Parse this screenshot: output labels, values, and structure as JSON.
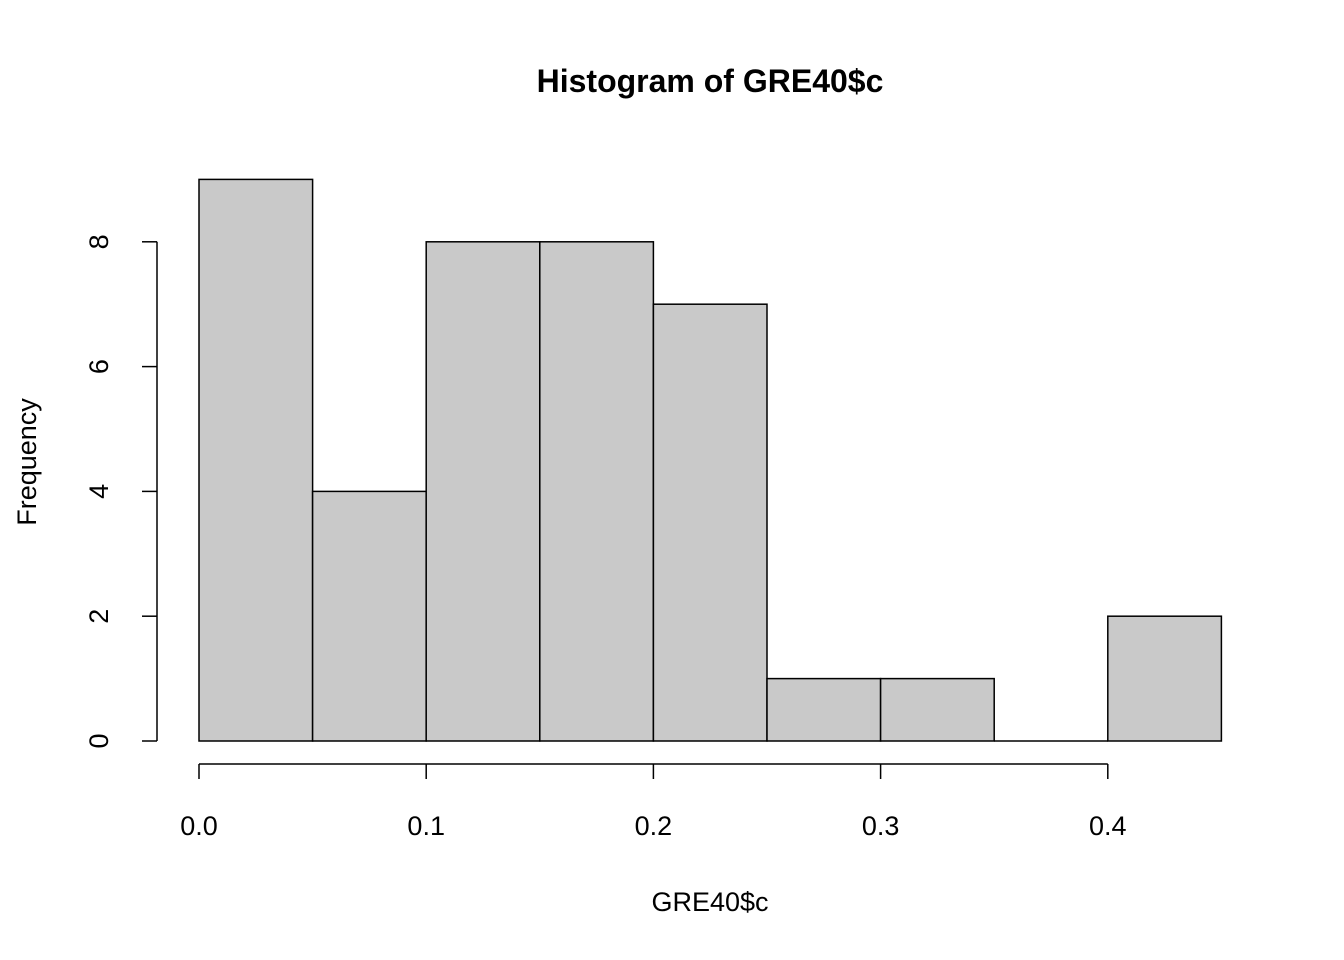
{
  "chart_data": {
    "type": "bar",
    "title": "Histogram of GRE40$c",
    "xlabel": "GRE40$c",
    "ylabel": "Frequency",
    "bin_edges": [
      0.0,
      0.05,
      0.1,
      0.15,
      0.2,
      0.25,
      0.3,
      0.35,
      0.4,
      0.45
    ],
    "values": [
      9,
      4,
      8,
      8,
      7,
      1,
      1,
      0,
      2
    ],
    "xlim": [
      0.0,
      0.45
    ],
    "ylim": [
      0,
      9
    ],
    "x_ticks": [
      0.0,
      0.1,
      0.2,
      0.3,
      0.4
    ],
    "x_tick_labels": [
      "0.0",
      "0.1",
      "0.2",
      "0.3",
      "0.4"
    ],
    "y_ticks": [
      0,
      2,
      4,
      6,
      8
    ],
    "y_tick_labels": [
      "0",
      "2",
      "4",
      "6",
      "8"
    ],
    "grid": false,
    "bar_color": "#c9c9c9",
    "edge_color": "#000000"
  }
}
